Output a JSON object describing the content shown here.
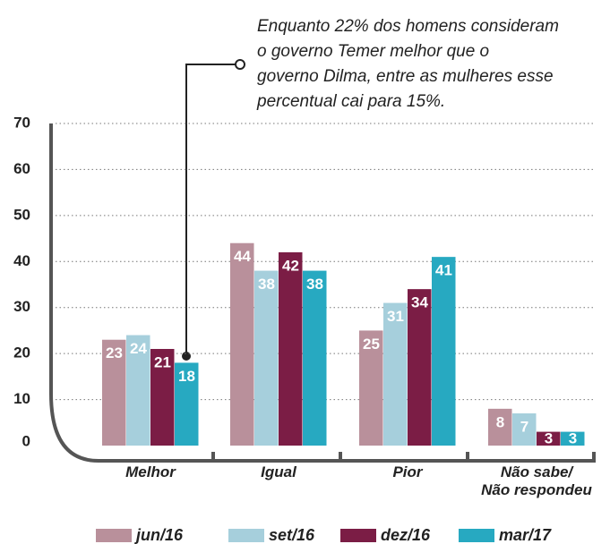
{
  "chart_data": {
    "type": "bar",
    "annotation": [
      "Enquanto 22% dos homens consideram",
      "o governo Temer melhor que o",
      "governo Dilma, entre as mulheres esse",
      "percentual cai para 15%."
    ],
    "categories": [
      "Melhor",
      "Igual",
      "Pior",
      "Não sabe/\nNão respondeu"
    ],
    "series": [
      {
        "name": "jun/16",
        "color": "#b9909b",
        "values": [
          23,
          44,
          25,
          8
        ]
      },
      {
        "name": "set/16",
        "color": "#a6cfdc",
        "values": [
          24,
          38,
          31,
          7
        ]
      },
      {
        "name": "dez/16",
        "color": "#7b1d45",
        "values": [
          21,
          42,
          34,
          3
        ]
      },
      {
        "name": "mar/17",
        "color": "#27a9c1",
        "values": [
          18,
          38,
          41,
          3
        ]
      }
    ],
    "ylim": [
      0,
      70
    ],
    "yticks": [
      0,
      10,
      20,
      30,
      40,
      50,
      60,
      70
    ],
    "grid": true
  }
}
